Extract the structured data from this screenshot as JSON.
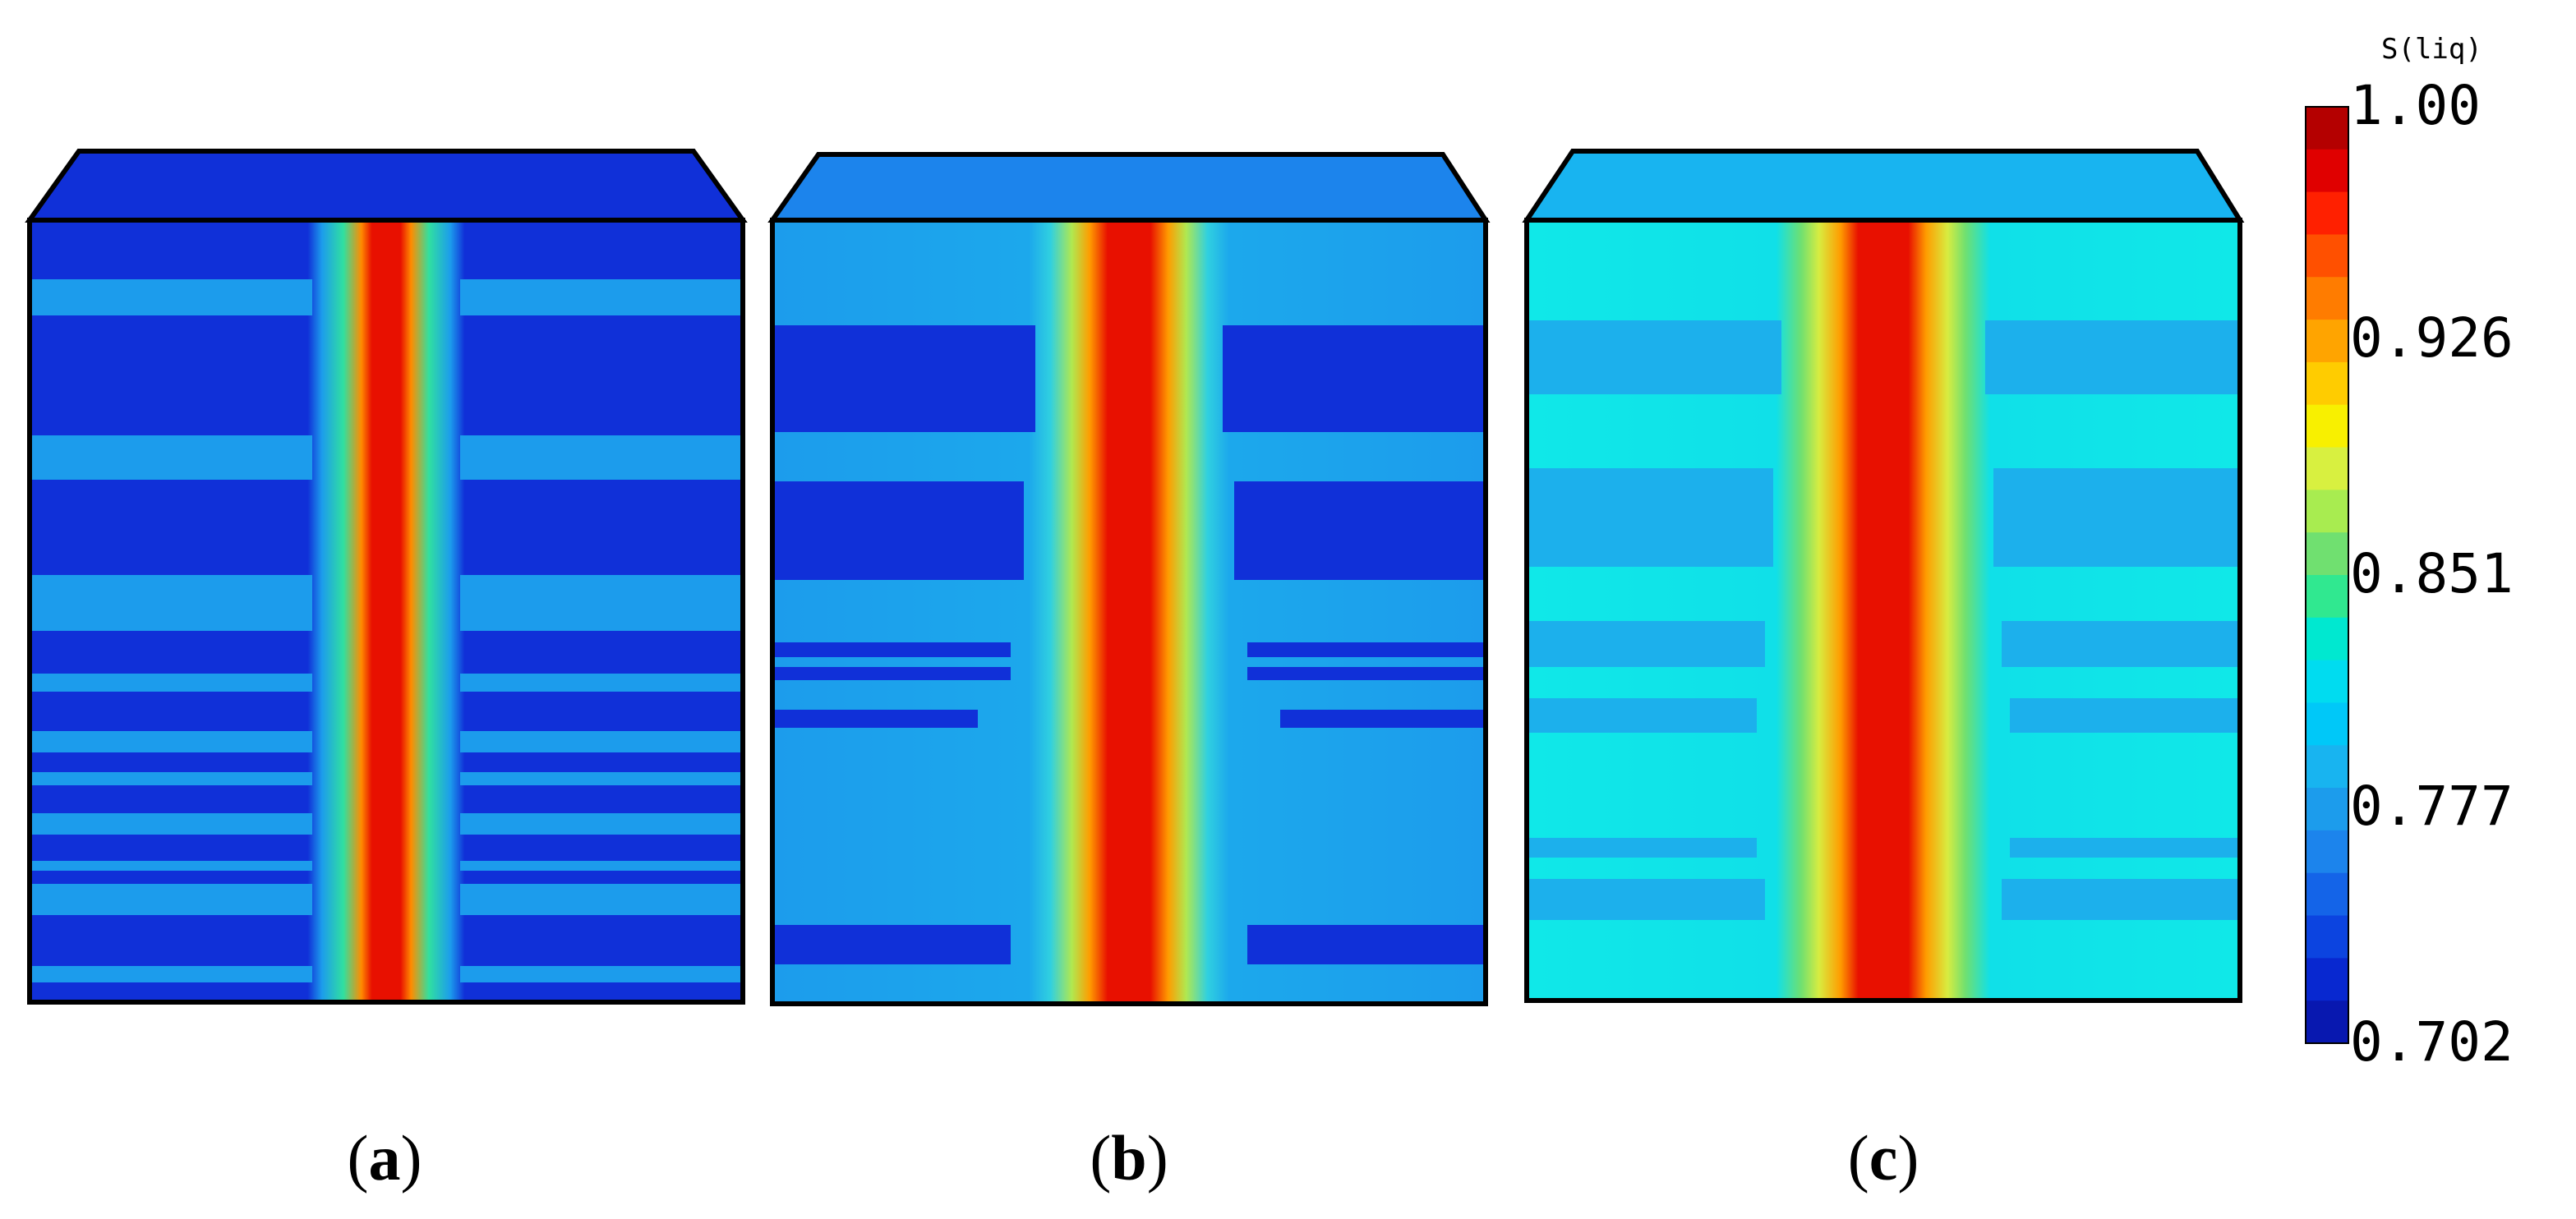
{
  "panels": [
    {
      "label": "a",
      "level": "low"
    },
    {
      "label": "b",
      "level": "mid"
    },
    {
      "label": "c",
      "level": "high"
    }
  ],
  "colorbar": {
    "title": "S(liq)",
    "min": 0.702,
    "max": 1.0,
    "ticks": [
      "1.00",
      "0.926",
      "0.851",
      "0.777",
      "0.702"
    ],
    "colors": [
      "#b40000",
      "#e00000",
      "#ff2000",
      "#ff5000",
      "#ff7c00",
      "#ffa400",
      "#ffcc00",
      "#f8f000",
      "#d8f040",
      "#a8ec50",
      "#70e070",
      "#30e890",
      "#00e8d0",
      "#00dcf0",
      "#00c8f8",
      "#18b4f0",
      "#1c9cec",
      "#1c84ec",
      "#1464e8",
      "#0c44e0",
      "#0828d0",
      "#0818b0"
    ]
  }
}
